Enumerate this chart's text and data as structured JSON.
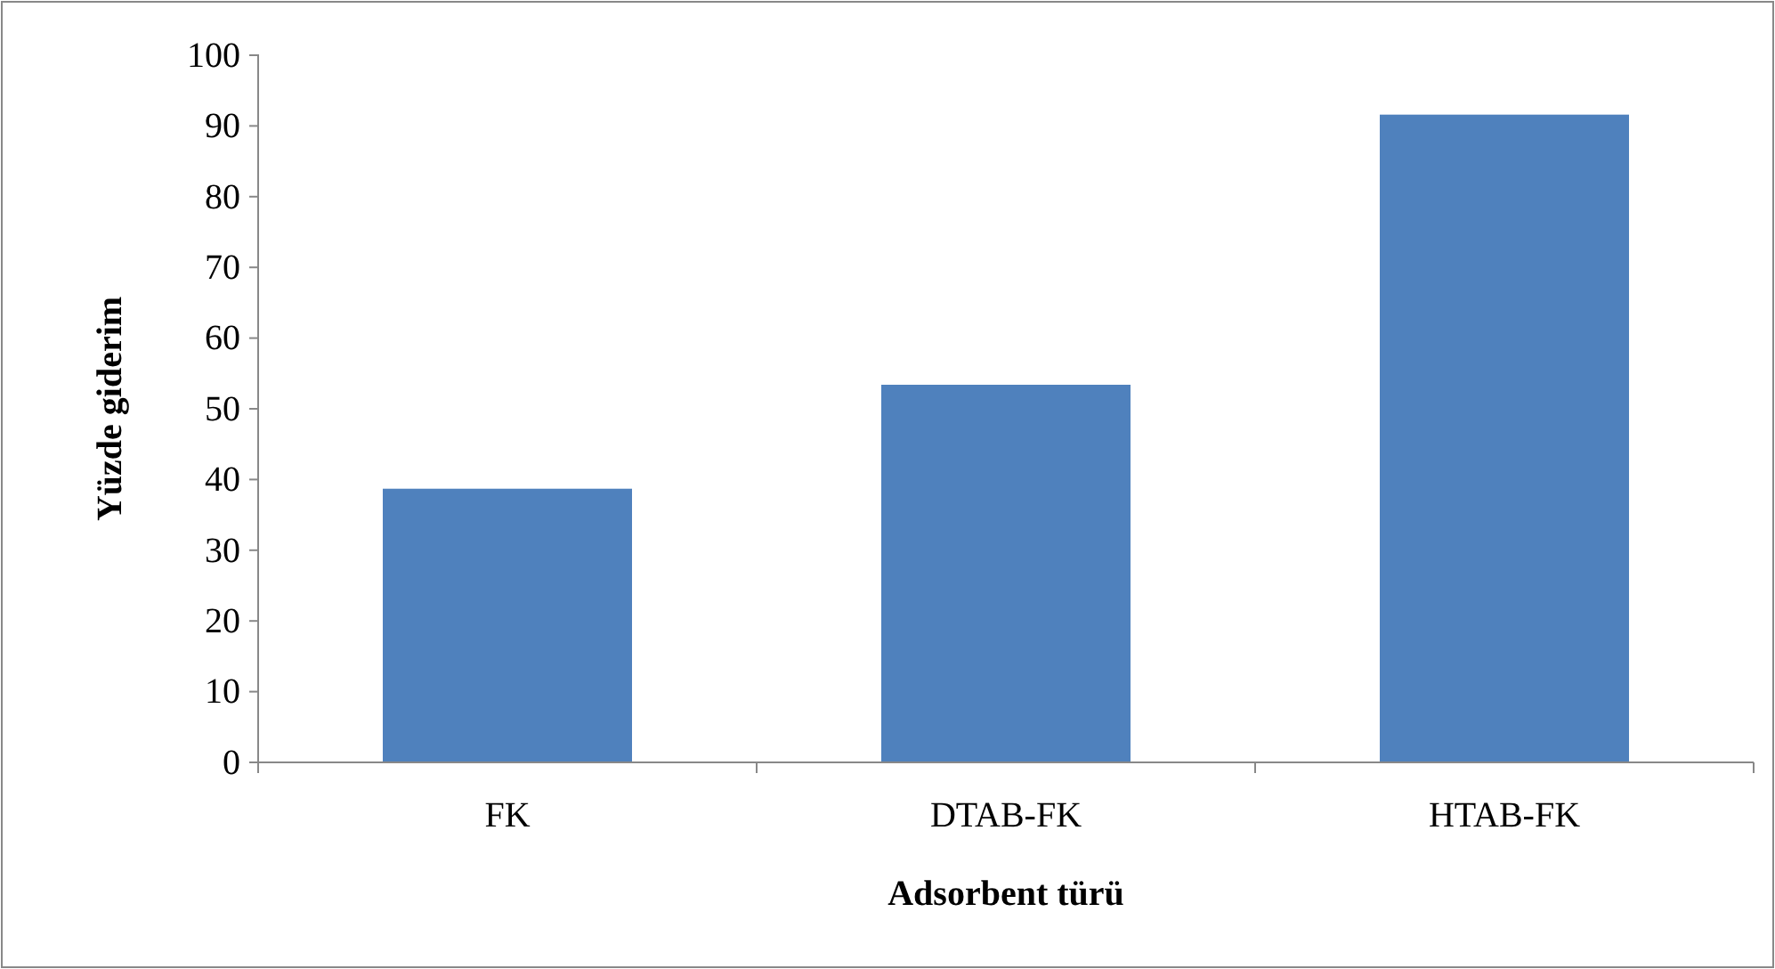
{
  "chart_data": {
    "type": "bar",
    "xlabel": "Adsorbent türü",
    "ylabel": "Yüzde giderim",
    "categories": [
      "FK",
      "DTAB-FK",
      "HTAB-FK"
    ],
    "values": [
      38.7,
      53.4,
      91.6
    ],
    "color": "#4f81bd",
    "ylim": [
      0,
      100
    ],
    "yticks": [
      0,
      10,
      20,
      30,
      40,
      50,
      60,
      70,
      80,
      90,
      100
    ]
  }
}
